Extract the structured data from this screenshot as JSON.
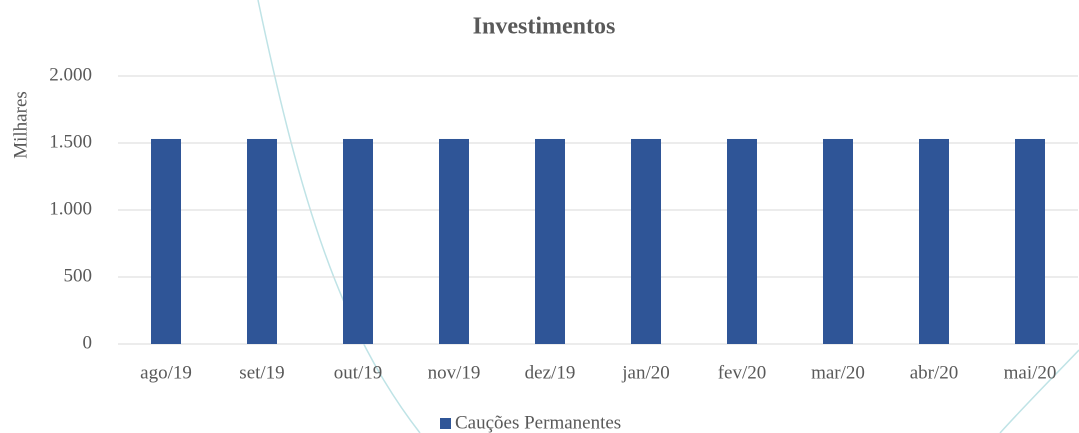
{
  "chart_data": {
    "type": "bar",
    "title": "Investimentos",
    "y_label": "Milhares",
    "categories": [
      "ago/19",
      "set/19",
      "out/19",
      "nov/19",
      "dez/19",
      "jan/20",
      "fev/20",
      "mar/20",
      "abr/20",
      "mai/20"
    ],
    "series": [
      {
        "name": "Cauções Permanentes",
        "color": "#2f5597",
        "values": [
          1530,
          1530,
          1530,
          1530,
          1530,
          1530,
          1530,
          1530,
          1530,
          1530
        ]
      }
    ],
    "ylim": [
      0,
      2000
    ],
    "yticks": [
      0,
      500,
      {
        "value": 1000,
        "label": "1.000"
      },
      {
        "value": 1500,
        "label": "1.500"
      },
      {
        "value": 2000,
        "label": "2.000"
      }
    ],
    "grid": true,
    "legend": "bottom"
  }
}
